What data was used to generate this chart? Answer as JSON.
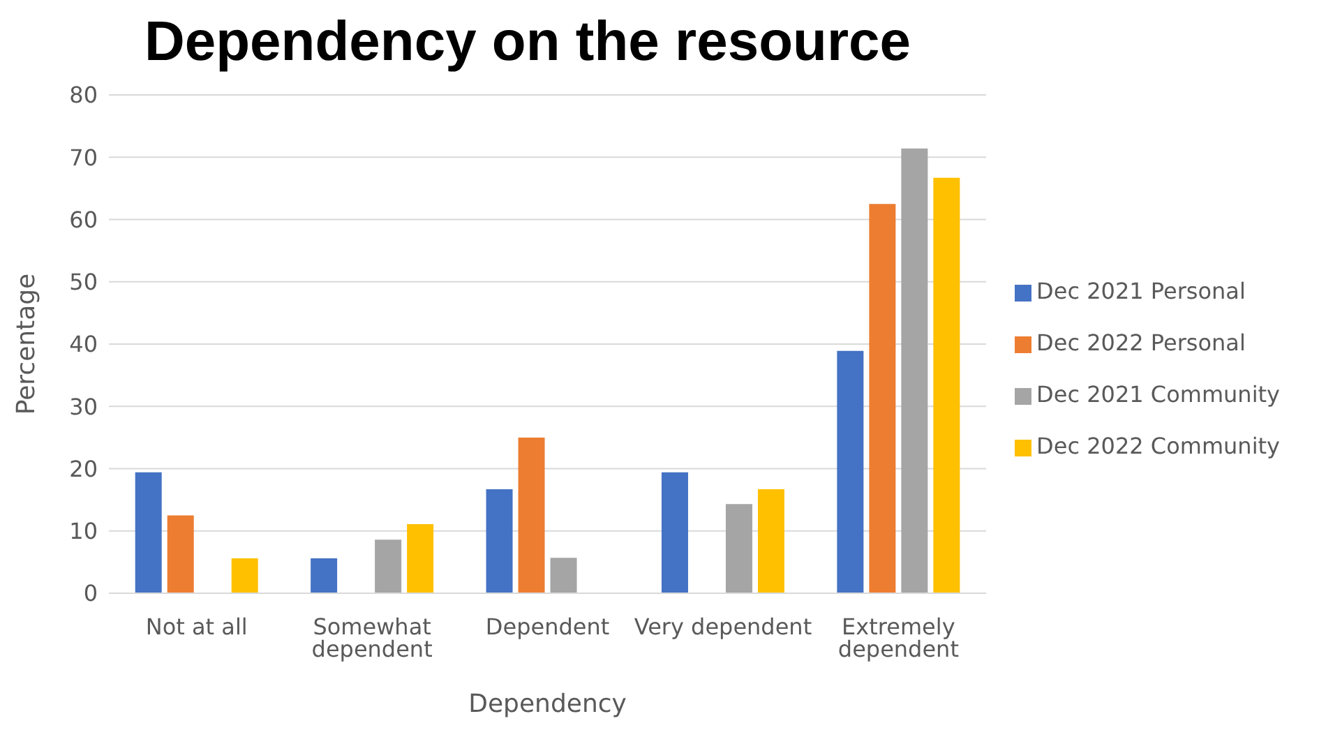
{
  "chart_data": {
    "type": "bar",
    "title": "Dependency on the resource",
    "xlabel": "Dependency",
    "ylabel": "Percentage",
    "categories": [
      "Not at all",
      "Somewhat dependent",
      "Dependent",
      "Very dependent",
      "Extremely dependent"
    ],
    "series": [
      {
        "name": "Dec 2021 Personal",
        "color": "#4472c4",
        "values": [
          19.4,
          5.6,
          16.7,
          19.4,
          38.9
        ]
      },
      {
        "name": "Dec 2022 Personal",
        "color": "#ed7d31",
        "values": [
          12.5,
          0,
          25,
          0,
          62.5
        ]
      },
      {
        "name": "Dec 2021 Community",
        "color": "#a5a5a5",
        "values": [
          0,
          8.6,
          5.7,
          14.3,
          71.4
        ]
      },
      {
        "name": "Dec 2022 Community",
        "color": "#ffc000",
        "values": [
          5.6,
          11.1,
          0,
          16.7,
          66.7
        ]
      }
    ],
    "ylim": [
      0,
      80
    ],
    "yticks": [
      0,
      10,
      20,
      30,
      40,
      50,
      60,
      70,
      80
    ],
    "grid": "y",
    "legend": "right"
  }
}
